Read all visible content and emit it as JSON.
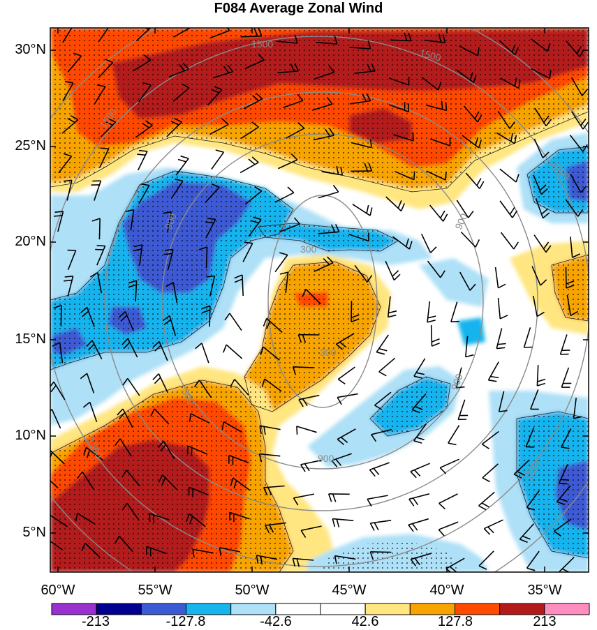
{
  "title": "F084 Average Zonal Wind",
  "lat_labels": [
    "30°N",
    "25°N",
    "20°N",
    "15°N",
    "10°N",
    "5°N"
  ],
  "lon_labels": [
    "60°W",
    "55°W",
    "50°W",
    "45°W",
    "40°W",
    "35°W"
  ],
  "contour_labels": [
    "1500",
    "1500",
    "1500",
    "1500",
    "900",
    "900",
    "900",
    "900",
    "300",
    "300",
    "300",
    "1500",
    "1500"
  ],
  "colorbar": {
    "labels": [
      "-213",
      "-127.8",
      "-42.6",
      "42.6",
      "127.8",
      "213"
    ],
    "colors": [
      "#9b30d0",
      "#000090",
      "#3c5ad4",
      "#17b4ee",
      "#aee0f7",
      "#ffffff",
      "#ffffff",
      "#ffe680",
      "#f7a400",
      "#ff4a00",
      "#b31a1a",
      "#ff8ec0"
    ]
  }
}
